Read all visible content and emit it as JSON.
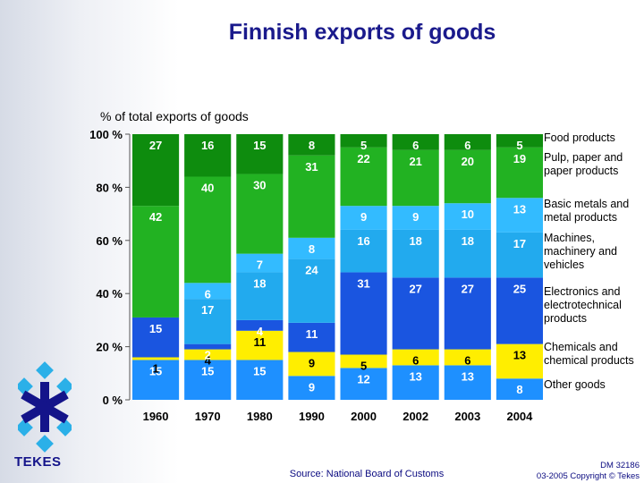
{
  "title": "Finnish exports of goods",
  "source": "Source: National Board of Customs",
  "doc_id": "DM 32186",
  "copyright": "03-2005 Copyright © Tekes",
  "logo_text": "TEKES",
  "chart_data": {
    "type": "bar",
    "stacked": true,
    "title": "Finnish exports of goods",
    "ylabel": "% of total exports of goods",
    "xlabel": "",
    "ylim": [
      0,
      100
    ],
    "yticks": [
      "0 %",
      "20 %",
      "40 %",
      "60 %",
      "80 %",
      "100 %"
    ],
    "categories": [
      "1960",
      "1970",
      "1980",
      "1990",
      "2000",
      "2002",
      "2003",
      "2004"
    ],
    "series": [
      {
        "name": "Other goods",
        "color": "#1e90ff",
        "values": [
          15,
          15,
          15,
          9,
          12,
          13,
          13,
          8
        ]
      },
      {
        "name": "Chemicals and chemical products",
        "color": "#ffee00",
        "values": [
          1,
          4,
          11,
          9,
          5,
          6,
          6,
          13
        ]
      },
      {
        "name": "Electronics and electrotechnical products",
        "color": "#1a55e0",
        "values": [
          15,
          2,
          4,
          11,
          31,
          27,
          27,
          25
        ]
      },
      {
        "name": "Machines, machinery and vehicles",
        "color": "#22aaee",
        "values": [
          0,
          17,
          18,
          24,
          16,
          18,
          18,
          17
        ]
      },
      {
        "name": "Basic metals and metal products",
        "color": "#33bbff",
        "values": [
          0,
          6,
          7,
          8,
          9,
          9,
          10,
          13
        ]
      },
      {
        "name": "Pulp, paper and paper products",
        "color": "#22b222",
        "values": [
          42,
          40,
          30,
          31,
          22,
          21,
          20,
          19
        ]
      },
      {
        "name": "Food products",
        "color": "#0e8c0e",
        "values": [
          27,
          16,
          15,
          8,
          5,
          6,
          6,
          5
        ]
      }
    ],
    "segment_labels": [
      [
        "15",
        "1",
        "15",
        "",
        "",
        "42",
        "27"
      ],
      [
        "15",
        "4",
        "2",
        "17",
        "6",
        "40",
        "16"
      ],
      [
        "15",
        "11",
        "4",
        "18",
        "7",
        "30",
        "15"
      ],
      [
        "9",
        "9",
        "11",
        "24",
        "8",
        "31",
        "8"
      ],
      [
        "12",
        "5",
        "31",
        "16",
        "9",
        "22",
        "5"
      ],
      [
        "13",
        "6",
        "27",
        "18",
        "9",
        "21",
        "6"
      ],
      [
        "13",
        "6",
        "27",
        "18",
        "10",
        "20",
        "6"
      ],
      [
        "8",
        "13",
        "25",
        "17",
        "13",
        "19",
        "5"
      ]
    ],
    "legend": [
      {
        "series_index": 6,
        "lines": [
          "Food products"
        ]
      },
      {
        "series_index": 5,
        "lines": [
          "Pulp, paper and",
          "paper products"
        ]
      },
      {
        "series_index": 4,
        "lines": [
          "Basic metals and",
          "metal products"
        ]
      },
      {
        "series_index": 3,
        "lines": [
          "Machines,",
          "machinery and",
          "vehicles"
        ]
      },
      {
        "series_index": 2,
        "lines": [
          "Electronics and",
          "electrotechnical",
          "products"
        ]
      },
      {
        "series_index": 1,
        "lines": [
          "Chemicals and",
          "chemical products"
        ]
      },
      {
        "series_index": 0,
        "lines": [
          "Other goods"
        ]
      }
    ],
    "legend_position": "right",
    "grid": false
  }
}
